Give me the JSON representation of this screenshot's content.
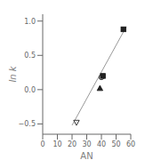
{
  "chart_data": {
    "type": "scatter",
    "xlabel": "AN",
    "ylabel": "ln k",
    "xlim": [
      0,
      60
    ],
    "ylim": [
      -0.65,
      1.1
    ],
    "xticks": [
      0,
      10,
      20,
      30,
      40,
      50,
      60
    ],
    "yticks": [
      {
        "value": -0.5,
        "label": "−0.5"
      },
      {
        "value": 0.0,
        "label": "0.0"
      },
      0.5,
      {
        "value": 1.0,
        "label": "1.0"
      }
    ],
    "color": "#111111",
    "series": [
      {
        "type": "line",
        "color": "#999999",
        "x": [
          20,
          57
        ],
        "values": [
          -0.52,
          0.92
        ]
      },
      {
        "type": "scatter",
        "marker": "triangle-down",
        "color": "#e8e8e8",
        "x": [
          23
        ],
        "values": [
          -0.48
        ]
      },
      {
        "type": "scatter",
        "marker": "triangle-up",
        "color": "#222222",
        "x": [
          39
        ],
        "values": [
          0.02
        ]
      },
      {
        "type": "scatter",
        "marker": "circle",
        "color": "#e8e8e8",
        "x": [
          40
        ],
        "values": [
          0.18
        ]
      },
      {
        "type": "scatter",
        "marker": "square",
        "color": "#222222",
        "x": [
          41,
          55
        ],
        "values": [
          0.2,
          0.88
        ]
      }
    ]
  }
}
